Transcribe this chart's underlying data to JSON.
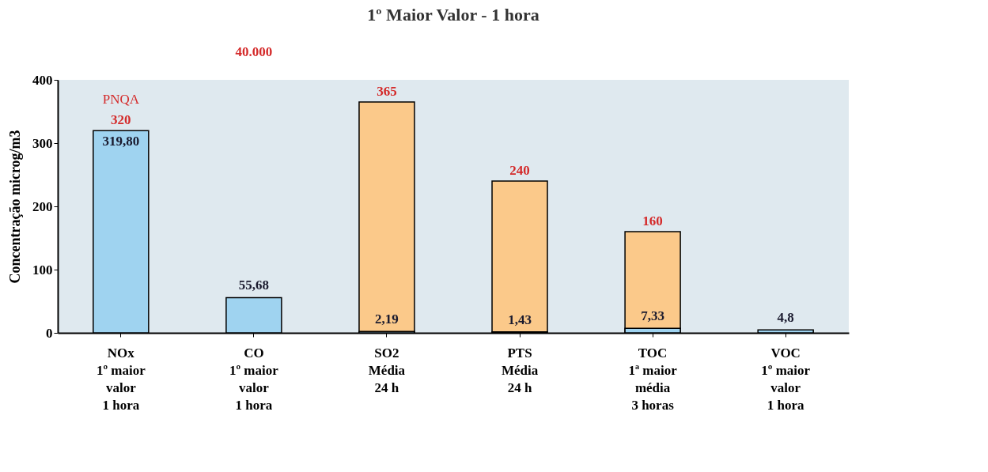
{
  "chart_data": {
    "type": "bar",
    "title": "1º Maior Valor - 1 hora",
    "ylabel": "Concentração microg/m3",
    "categories": [
      "NOx\n1º maior\nvalor\n1 hora",
      "CO\n1º maior\nvalor\n1 hora",
      "SO2\nMédia\n24 h",
      "PTS\nMédia\n24 h",
      "TOC\n1ª maior\nmédia\n3 horas",
      "VOC\n1º maior\nvalor\n1 hora"
    ],
    "series": [
      {
        "color": "#fbc98a",
        "values": [
          null,
          null,
          365,
          240,
          160,
          null
        ],
        "value_labels": [
          null,
          null,
          "365",
          "240",
          "160",
          null
        ]
      },
      {
        "color": "#9fd3f0",
        "values": [
          319.8,
          55.68,
          2.19,
          1.43,
          7.33,
          4.8
        ],
        "value_labels": [
          "319,80",
          "55,68",
          "2,19",
          "1,43",
          "7,33",
          "4,8"
        ]
      }
    ],
    "annotations": [
      "PNQA",
      "40.000",
      {
        "text": "320",
        "x": "NOx\n1º maior\nvalor\n1 hora",
        "y": 320
      }
    ],
    "ylim": [
      0,
      400
    ],
    "yticks": [
      0,
      100,
      200,
      300,
      400
    ],
    "grid": false
  }
}
